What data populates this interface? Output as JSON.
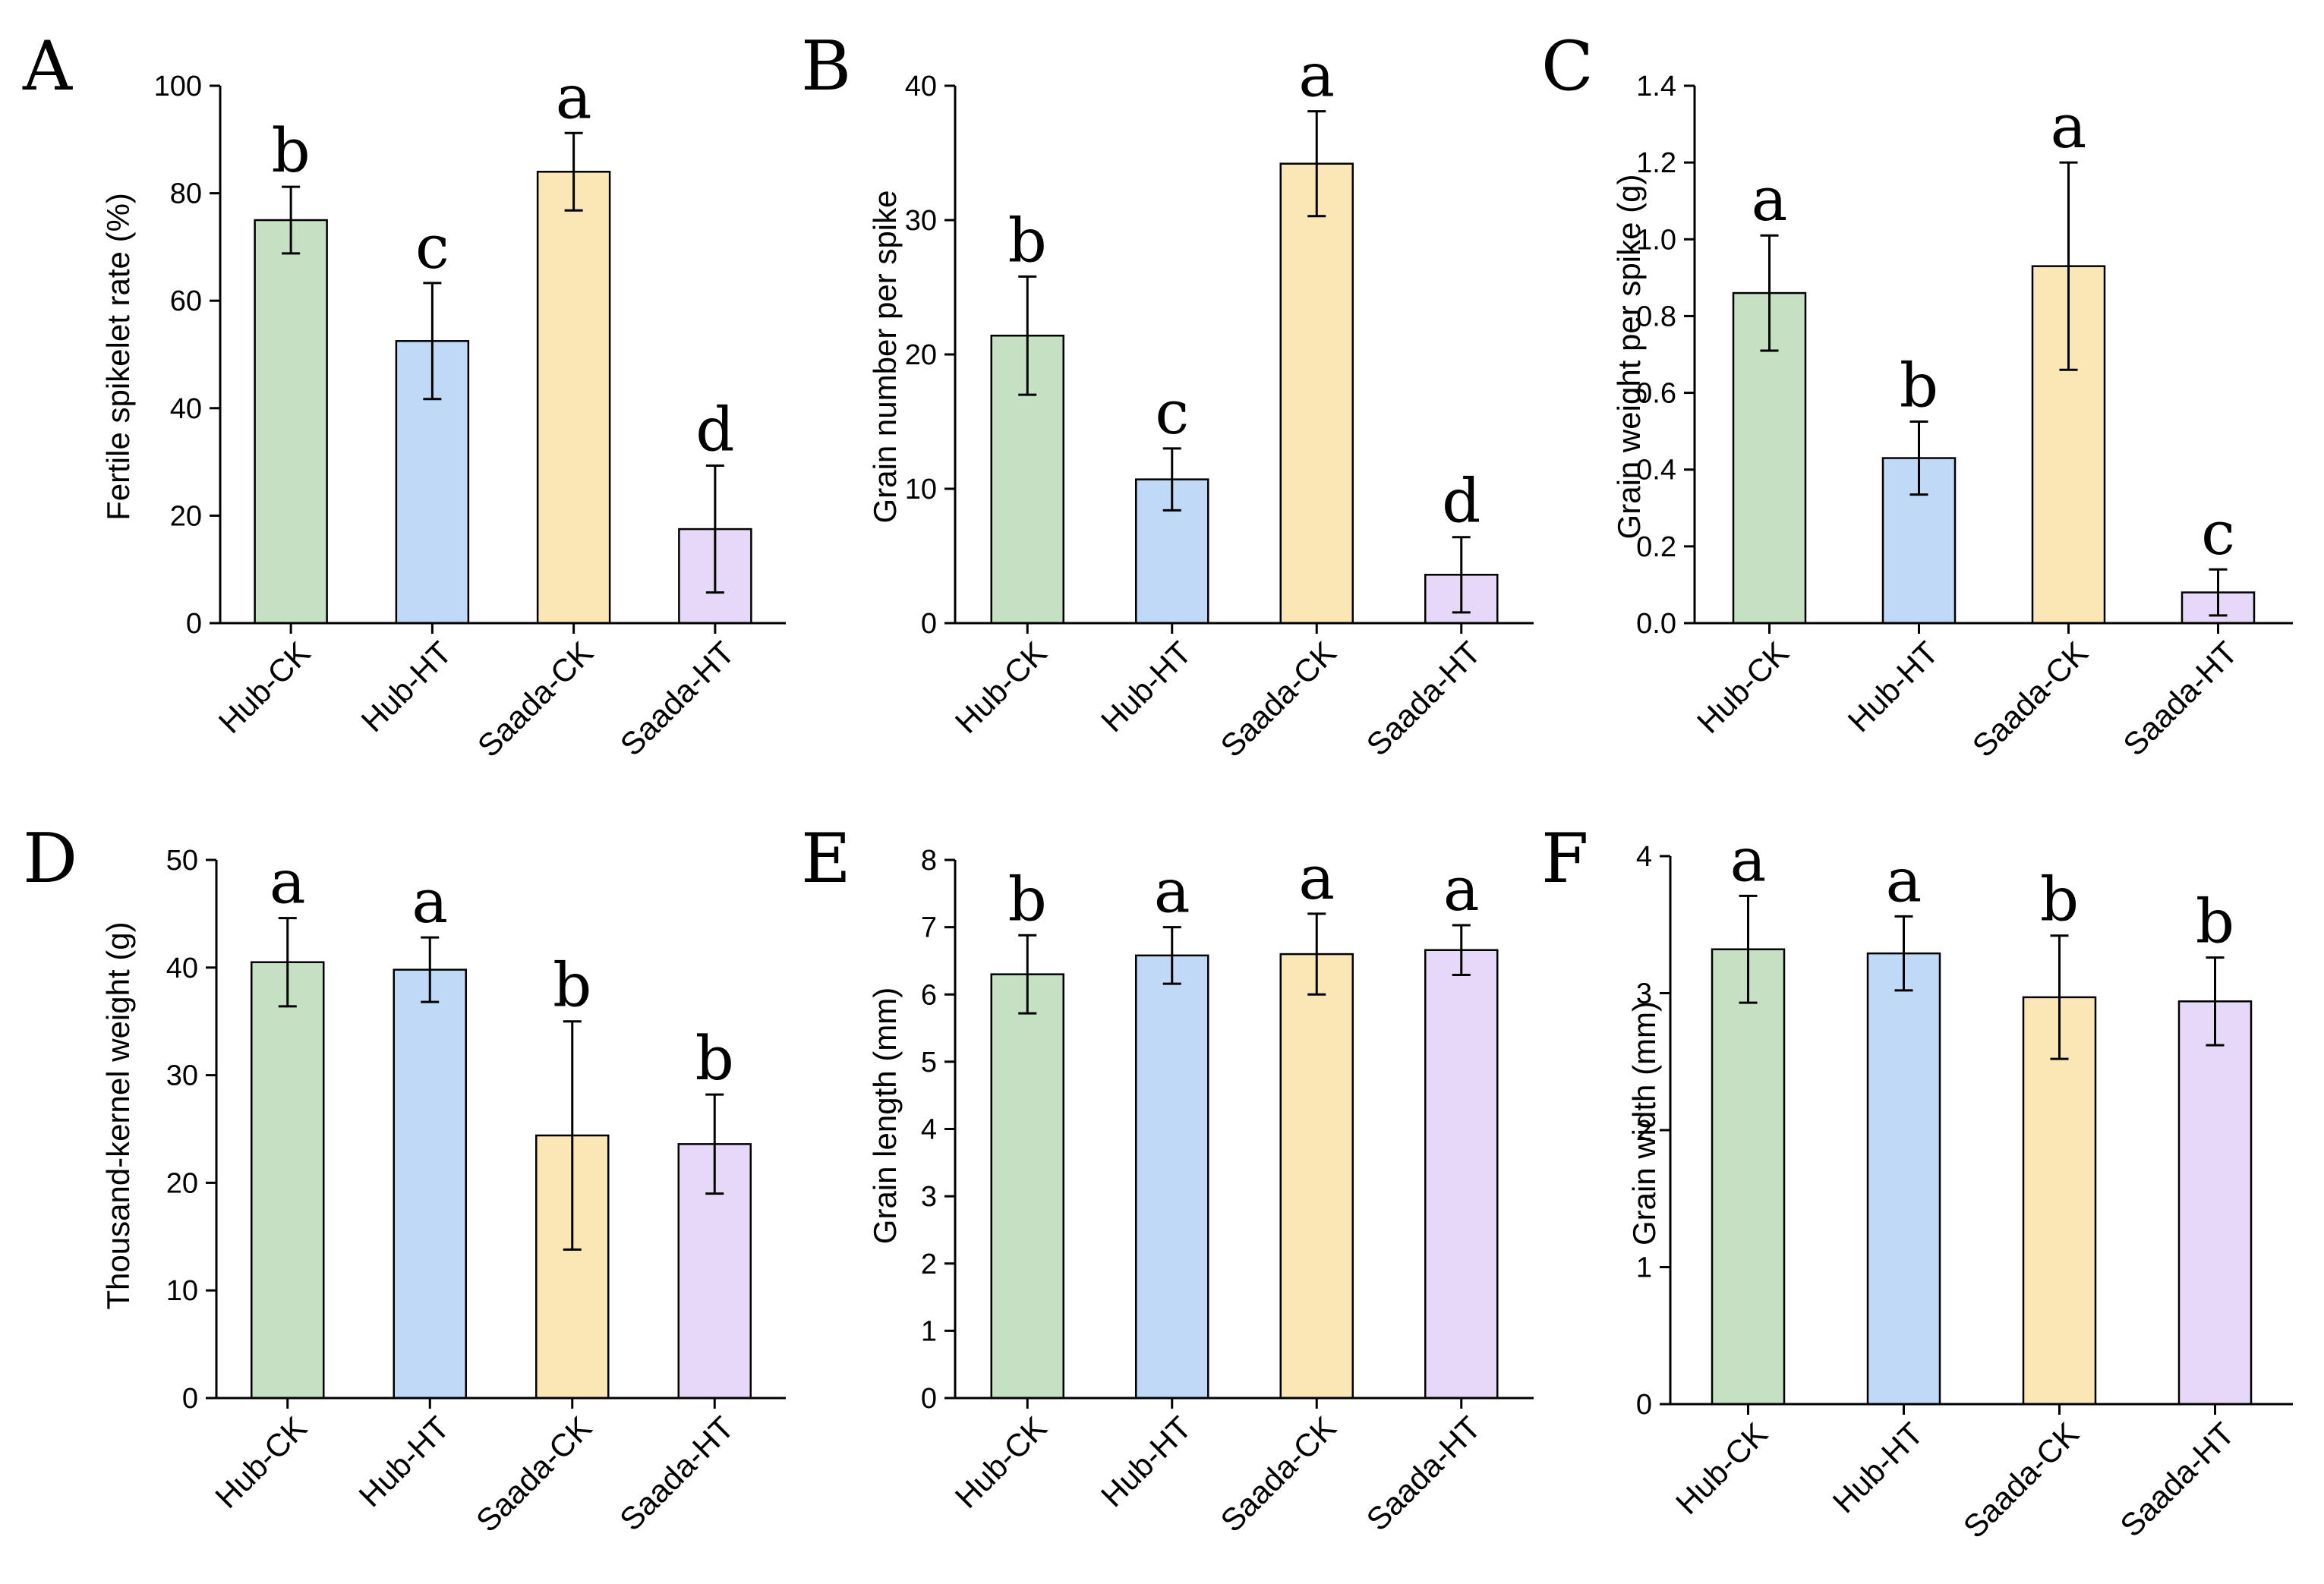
{
  "colors": {
    "Hub-CK": "#c5e0c2",
    "Hub-HT": "#bfd9f7",
    "Saada-CK": "#fbe6b5",
    "Saada-HT": "#e6d9f7",
    "axis": "#000000"
  },
  "chart_data": [
    {
      "panel": "A",
      "type": "bar",
      "ylabel": "Fertile spikelet rate (%)",
      "ylim": [
        0,
        100
      ],
      "yticks": [
        0,
        20,
        40,
        60,
        80,
        100
      ],
      "tick_decimals": 0,
      "categories": [
        "Hub-CK",
        "Hub-HT",
        "Saada-CK",
        "Saada-HT"
      ],
      "values": [
        75,
        52.5,
        84,
        17.5
      ],
      "errors": [
        6.2,
        10.8,
        7.2,
        11.8
      ],
      "letters": [
        "b",
        "c",
        "a",
        "d"
      ]
    },
    {
      "panel": "B",
      "type": "bar",
      "ylabel": "Grain number per spike",
      "ylim": [
        0,
        40
      ],
      "yticks": [
        0,
        10,
        20,
        30,
        40
      ],
      "tick_decimals": 0,
      "categories": [
        "Hub-CK",
        "Hub-HT",
        "Saada-CK",
        "Saada-HT"
      ],
      "values": [
        21.4,
        10.7,
        34.2,
        3.6
      ],
      "errors": [
        4.4,
        2.3,
        3.9,
        2.8
      ],
      "letters": [
        "b",
        "c",
        "a",
        "d"
      ]
    },
    {
      "panel": "C",
      "type": "bar",
      "ylabel": "Grain weight per spike (g)",
      "ylim": [
        0,
        1.4
      ],
      "yticks": [
        0,
        0.2,
        0.4,
        0.6,
        0.8,
        1.0,
        1.2,
        1.4
      ],
      "tick_decimals": 1,
      "categories": [
        "Hub-CK",
        "Hub-HT",
        "Saada-CK",
        "Saada-HT"
      ],
      "values": [
        0.86,
        0.43,
        0.93,
        0.08
      ],
      "errors": [
        0.15,
        0.095,
        0.27,
        0.06
      ],
      "letters": [
        "a",
        "b",
        "a",
        "c"
      ]
    },
    {
      "panel": "D",
      "type": "bar",
      "ylabel": "Thousand-kernel weight (g)",
      "ylim": [
        0,
        50
      ],
      "yticks": [
        0,
        10,
        20,
        30,
        40,
        50
      ],
      "tick_decimals": 0,
      "categories": [
        "Hub-CK",
        "Hub-HT",
        "Saada-CK",
        "Saada-HT"
      ],
      "values": [
        40.5,
        39.8,
        24.4,
        23.6
      ],
      "errors": [
        4.1,
        3.0,
        10.6,
        4.6
      ],
      "letters": [
        "a",
        "a",
        "b",
        "b"
      ]
    },
    {
      "panel": "E",
      "type": "bar",
      "ylabel": "Grain length (mm)",
      "ylim": [
        0,
        8
      ],
      "yticks": [
        0,
        1,
        2,
        3,
        4,
        5,
        6,
        7,
        8
      ],
      "tick_decimals": 0,
      "categories": [
        "Hub-CK",
        "Hub-HT",
        "Saada-CK",
        "Saada-HT"
      ],
      "values": [
        6.3,
        6.58,
        6.6,
        6.66
      ],
      "errors": [
        0.58,
        0.42,
        0.6,
        0.37
      ],
      "letters": [
        "b",
        "a",
        "a",
        "a"
      ]
    },
    {
      "panel": "F",
      "type": "bar",
      "ylabel": "Grain width (mm)",
      "ylim": [
        0,
        4
      ],
      "yticks": [
        0,
        1,
        2,
        3,
        4
      ],
      "tick_decimals": 0,
      "categories": [
        "Hub-CK",
        "Hub-HT",
        "Saada-CK",
        "Saada-HT"
      ],
      "values": [
        3.32,
        3.29,
        2.97,
        2.94
      ],
      "errors": [
        0.39,
        0.27,
        0.45,
        0.32
      ],
      "letters": [
        "a",
        "a",
        "b",
        "b"
      ]
    }
  ]
}
